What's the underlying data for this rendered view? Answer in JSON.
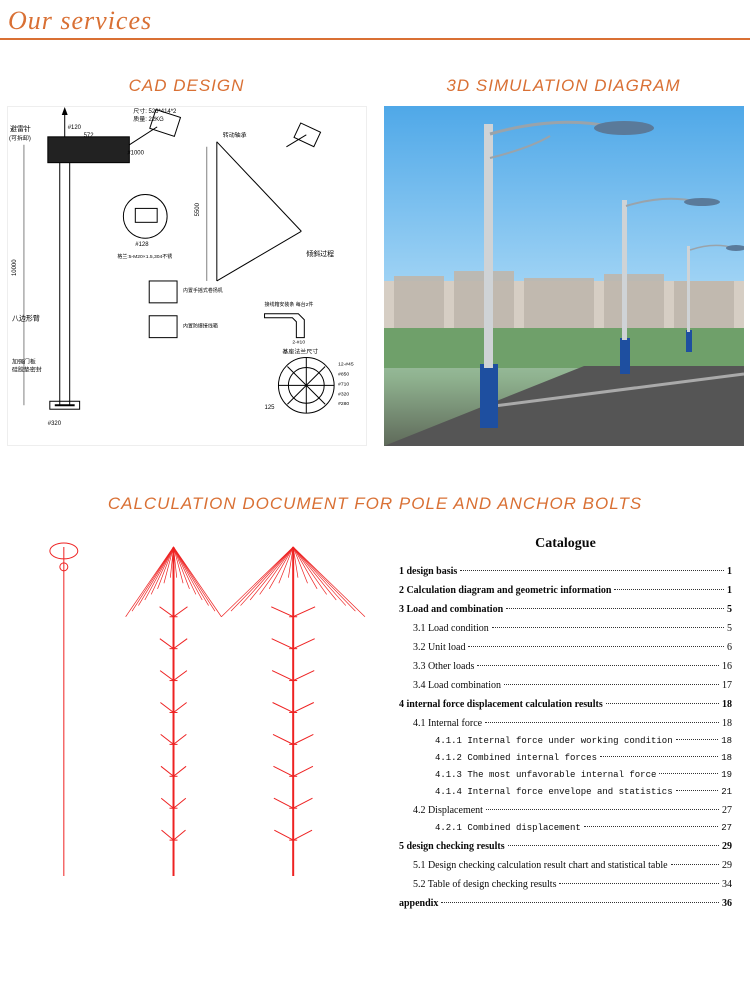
{
  "header": {
    "title": "Our services"
  },
  "sections": {
    "cad_label": "CAD DESIGN",
    "sim_label": "3D SIMULATION DIAGRAM",
    "calc_label": "CALCULATION DOCUMENT FOR POLE AND ANCHOR BOLTS"
  },
  "colors": {
    "accent": "#d97034",
    "sky_top": "#4fa8e8",
    "sky_bot": "#a3d5f5",
    "ground": "#8fb28f",
    "pole_base": "#1e4fa0",
    "calc_red": "#ee2222",
    "text": "#0a0a0a"
  },
  "cad": {
    "annotations": [
      "避雷针",
      "(可拆卸)",
      "尺寸: 526 * 414 * 2",
      "质量: 22KG",
      "#120",
      "572",
      "#1000",
      "EJB101-M20_50A/P防爆接线盒(安装于灯盘上)",
      "转动轴承",
      "特殊T-M20 ×1.5套丝 0235",
      "灯杆开孔#18",
      "#128",
      "格兰: 5-M20×1.5,304不锈",
      "内置手摇式卷扬机",
      "内置防爆接线箱",
      "倾斜过程",
      "接线箱安装条 每台2件 165",
      "2-#10",
      "基座法兰尺寸",
      "12-#45",
      "#850",
      "#710",
      "#320",
      "#280",
      "125",
      "加强门板 硅胶垫密封",
      "八边形臂",
      "A向",
      "10000",
      "5500",
      "1500",
      "700",
      "300",
      "550",
      "A",
      "#320",
      "14",
      "150",
      "30"
    ],
    "pole_height_mm": 10000,
    "base_dia_mm": 320,
    "top_dia_mm": 120
  },
  "simulation": {
    "pole_count": 3,
    "pole_color": "#cfd3d6",
    "base_color": "#1e4fa0",
    "lamp_color": "#5a7a9a",
    "sky_gradient": [
      "#4fa8e8",
      "#a3d5f5"
    ],
    "buildings_color": "#cfc7bd",
    "road_color": "#5a5a5a"
  },
  "calc_diagram": {
    "type": "envelope-diagram",
    "columns": 3,
    "color": "#ee2222",
    "line_width": 1,
    "segments_per_column": 9
  },
  "catalogue": {
    "title": "Catalogue",
    "items": [
      {
        "label": "1 design basis",
        "page": "1",
        "bold": true,
        "indent": 0
      },
      {
        "label": "2 Calculation diagram and geometric information",
        "page": "1",
        "bold": true,
        "indent": 0
      },
      {
        "label": "3 Load and combination",
        "page": "5",
        "bold": true,
        "indent": 0
      },
      {
        "label": "3.1 Load condition",
        "page": "5",
        "bold": false,
        "indent": 1
      },
      {
        "label": "3.2 Unit load",
        "page": "6",
        "bold": false,
        "indent": 1
      },
      {
        "label": "3.3 Other loads",
        "page": "16",
        "bold": false,
        "indent": 1
      },
      {
        "label": "3.4 Load combination",
        "page": "17",
        "bold": false,
        "indent": 1
      },
      {
        "label": "4 internal force displacement calculation results",
        "page": "18",
        "bold": true,
        "indent": 0
      },
      {
        "label": "4.1 Internal force",
        "page": "18",
        "bold": false,
        "indent": 1
      },
      {
        "label": "4.1.1 Internal force under working condition",
        "page": "18",
        "bold": false,
        "indent": 2,
        "mono": true
      },
      {
        "label": "4.1.2 Combined internal forces",
        "page": "18",
        "bold": false,
        "indent": 2,
        "mono": true
      },
      {
        "label": "4.1.3 The most unfavorable internal force",
        "page": "19",
        "bold": false,
        "indent": 2,
        "mono": true
      },
      {
        "label": "4.1.4 Internal force envelope and statistics",
        "page": "21",
        "bold": false,
        "indent": 2,
        "mono": true
      },
      {
        "label": "4.2 Displacement",
        "page": "27",
        "bold": false,
        "indent": 1
      },
      {
        "label": "4.2.1 Combined displacement",
        "page": "27",
        "bold": false,
        "indent": 2,
        "mono": true
      },
      {
        "label": "5 design checking results",
        "page": "29",
        "bold": true,
        "indent": 0
      },
      {
        "label": "5.1 Design checking calculation result chart and statistical table",
        "page": "29",
        "bold": false,
        "indent": 1
      },
      {
        "label": "5.2 Table of design checking results",
        "page": "34",
        "bold": false,
        "indent": 1
      },
      {
        "label": "appendix",
        "page": "36",
        "bold": true,
        "indent": 0
      }
    ]
  }
}
